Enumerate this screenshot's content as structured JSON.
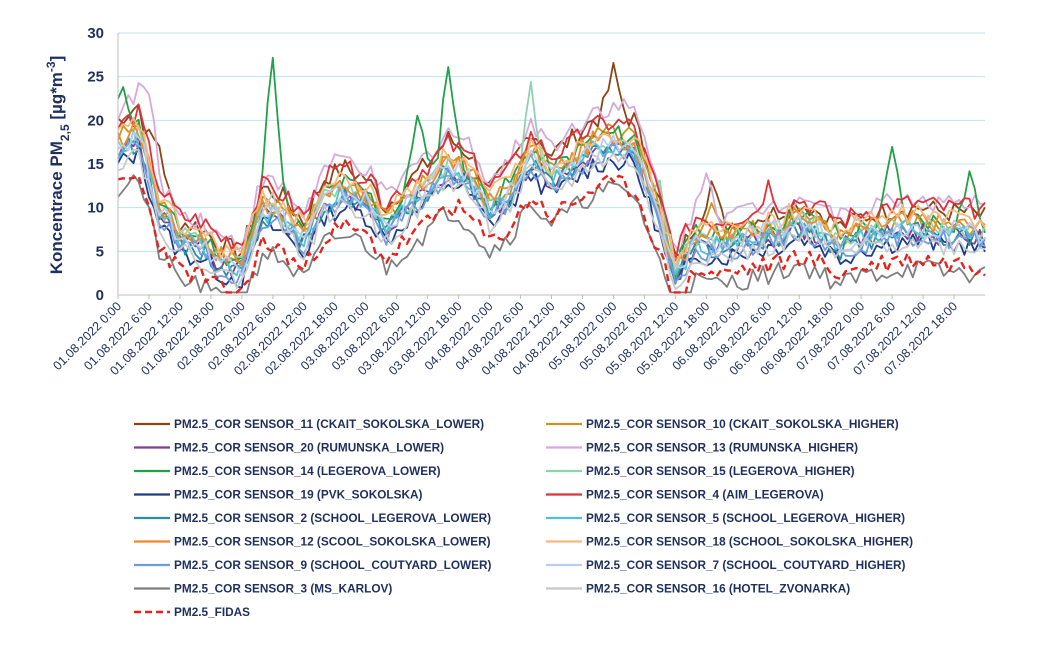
{
  "chart_data": {
    "type": "line",
    "title": "",
    "ylabel": "Koncentrace PM2,5 [µg*m-3]",
    "ylabel_parts": {
      "main": "Koncentrace PM",
      "sub": "2,5",
      "unit_open": " [µg*m",
      "sup": "-3",
      "unit_close": "]"
    },
    "xlabel": "",
    "ylim": [
      0,
      30
    ],
    "yticks": [
      0,
      5,
      10,
      15,
      20,
      25,
      30
    ],
    "grid": true,
    "legend_position": "bottom",
    "x_range_hours": [
      0,
      168
    ],
    "x_tick_hours": [
      0,
      6,
      12,
      18,
      24,
      30,
      36,
      42,
      48,
      54,
      60,
      66,
      72,
      78,
      84,
      90,
      96,
      102,
      108,
      114,
      120,
      126,
      132,
      138,
      144,
      150,
      156,
      162
    ],
    "x_tick_labels": [
      "01.08.2022 0:00",
      "01.08.2022 6:00",
      "01.08.2022 12:00",
      "01.08.2022 18:00",
      "02.08.2022 0:00",
      "02.08.2022 6:00",
      "02.08.2022 12:00",
      "02.08.2022 18:00",
      "03.08.2022 0:00",
      "03.08.2022 6:00",
      "03.08.2022 12:00",
      "03.08.2022 18:00",
      "04.08.2022 0:00",
      "04.08.2022 6:00",
      "04.08.2022 12:00",
      "04.08.2022 18:00",
      "05.08.2022 0:00",
      "05.08.2022 6:00",
      "05.08.2022 12:00",
      "05.08.2022 18:00",
      "06.08.2022 0:00",
      "06.08.2022 6:00",
      "06.08.2022 12:00",
      "06.08.2022 18:00",
      "07.08.2022 0:00",
      "07.08.2022 6:00",
      "07.08.2022 12:00",
      "07.08.2022 18:00"
    ],
    "reference_series_hours": [
      0,
      4,
      8,
      12,
      16,
      20,
      24,
      28,
      32,
      36,
      40,
      44,
      48,
      52,
      56,
      60,
      64,
      68,
      72,
      76,
      80,
      84,
      88,
      92,
      96,
      100,
      104,
      108,
      112,
      116,
      120,
      124,
      128,
      132,
      136,
      140,
      144,
      148,
      152,
      156,
      160,
      164,
      168
    ],
    "base_profile": [
      16,
      17.5,
      9,
      5.5,
      5,
      3,
      2.5,
      9,
      8,
      5.5,
      10,
      11,
      10,
      7,
      9.5,
      11.5,
      14,
      12.5,
      9,
      11,
      15,
      12.5,
      14,
      16,
      16.5,
      16,
      9.5,
      1.5,
      5.5,
      5,
      5.5,
      6,
      6.5,
      7.5,
      6.5,
      5,
      6,
      6.5,
      7,
      7,
      6.5,
      6.5,
      6
    ],
    "series": [
      {
        "name": "PM2.5_COR SENSOR_11 (CKAIT_SOKOLSKA_LOWER)",
        "color": "#8b4513",
        "dash": "",
        "offset": 2.2,
        "scale": 1.12,
        "spikes": [
          [
            8,
            5
          ],
          [
            96,
            5
          ],
          [
            115,
            5
          ]
        ]
      },
      {
        "name": "PM2.5_COR SENSOR_10 (CKAIT_SOKOLSKA_HIGHER)",
        "color": "#c8961e",
        "dash": "",
        "offset": 1.2,
        "scale": 1.05,
        "spikes": [
          [
            115,
            4
          ]
        ]
      },
      {
        "name": "PM2.5_COR SENSOR_20 (RUMUNSKA_LOWER)",
        "color": "#7b3f8c",
        "dash": "",
        "offset": 0.3,
        "scale": 1.0,
        "spikes": []
      },
      {
        "name": "PM2.5_COR SENSOR_13 (RUMUNSKA_HIGHER)",
        "color": "#d7a9d9",
        "dash": "",
        "offset": 3.2,
        "scale": 1.12,
        "spikes": [
          [
            6,
            5
          ],
          [
            114,
            6
          ]
        ]
      },
      {
        "name": "PM2.5_COR SENSOR_14 (LEGEROVA_LOWER)",
        "color": "#23a04a",
        "dash": "",
        "offset": 1.6,
        "scale": 1.02,
        "spikes": [
          [
            1,
            6
          ],
          [
            30,
            18
          ],
          [
            58,
            9
          ],
          [
            64,
            11
          ],
          [
            150,
            8
          ],
          [
            165,
            6
          ]
        ]
      },
      {
        "name": "PM2.5_COR SENSOR_15 (LEGEROVA_HIGHER)",
        "color": "#8fd3ad",
        "dash": "",
        "offset": 1.1,
        "scale": 1.0,
        "spikes": [
          [
            80,
            8
          ],
          [
            105,
            4
          ]
        ]
      },
      {
        "name": "PM2.5_COR SENSOR_19 (PVK_SOKOLSKA)",
        "color": "#1f3b8a",
        "dash": "",
        "offset": -0.6,
        "scale": 0.97,
        "spikes": []
      },
      {
        "name": "PM2.5_COR SENSOR_4 (AIM_LEGEROVA)",
        "color": "#e0303a",
        "dash": "",
        "offset": 3.6,
        "scale": 0.98,
        "spikes": [
          [
            126,
            3
          ]
        ]
      },
      {
        "name": "PM2.5_COR SENSOR_2 (SCHOOL_LEGEROVA_LOWER)",
        "color": "#2a8fa0",
        "dash": "",
        "offset": 0.2,
        "scale": 1.0,
        "spikes": []
      },
      {
        "name": "PM2.5_COR SENSOR_5 (SCHOOL_LEGEROVA_HIGHER)",
        "color": "#4fc1d8",
        "dash": "",
        "offset": 0.6,
        "scale": 1.0,
        "spikes": []
      },
      {
        "name": "PM2.5_COR SENSOR_12 (SCOOL_SOKOLSKA_LOWER)",
        "color": "#f0882a",
        "dash": "",
        "offset": 1.6,
        "scale": 1.0,
        "spikes": []
      },
      {
        "name": "PM2.5_COR SENSOR_18 (SCHOOL_SOKOLSKA_HIGHER)",
        "color": "#f5b97e",
        "dash": "",
        "offset": 2.3,
        "scale": 1.0,
        "spikes": []
      },
      {
        "name": "PM2.5_COR SENSOR_9 (SCHOOL_COUTYARD_LOWER)",
        "color": "#6e9be0",
        "dash": "",
        "offset": -0.2,
        "scale": 1.0,
        "spikes": []
      },
      {
        "name": "PM2.5_COR SENSOR_7 (SCHOOL_COUTYARD_HIGHER)",
        "color": "#b8cdf0",
        "dash": "",
        "offset": 0.9,
        "scale": 1.0,
        "spikes": []
      },
      {
        "name": "PM2.5_COR SENSOR_3 (MS_KARLOV)",
        "color": "#7f7f7f",
        "dash": "",
        "offset": -3.6,
        "scale": 0.95,
        "spikes": [
          [
            2,
            1
          ]
        ]
      },
      {
        "name": "PM2.5_COR SENSOR_16 (HOTEL_ZVONARKA)",
        "color": "#c8c8c8",
        "dash": "",
        "offset": -0.8,
        "scale": 1.0,
        "spikes": [
          [
            30,
            5
          ]
        ]
      },
      {
        "name": "PM2.5_FIDAS",
        "color": "#e8211a",
        "dash": "7,4",
        "offset": -2.2,
        "scale": 0.9,
        "spikes": []
      }
    ]
  }
}
